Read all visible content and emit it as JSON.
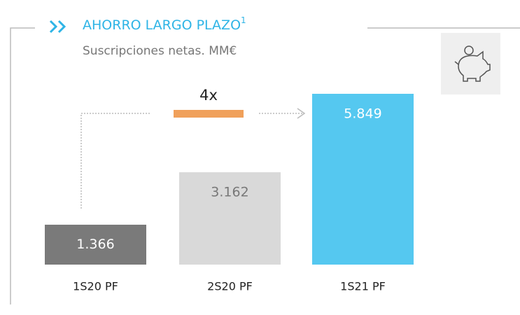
{
  "chart_data": {
    "type": "bar",
    "title": "AHORRO LARGO PLAZO",
    "title_superscript": "1",
    "subtitle": "Suscripciones netas. MM€",
    "annotation": "4x",
    "categories": [
      "1S20 PF",
      "2S20 PF",
      "1S21 PF"
    ],
    "values": [
      1366,
      3162,
      5849
    ],
    "value_labels": [
      "1.366",
      "3.162",
      "5.849"
    ],
    "colors": [
      "#7a7a7a",
      "#d9d9d9",
      "#55c8f0"
    ]
  }
}
